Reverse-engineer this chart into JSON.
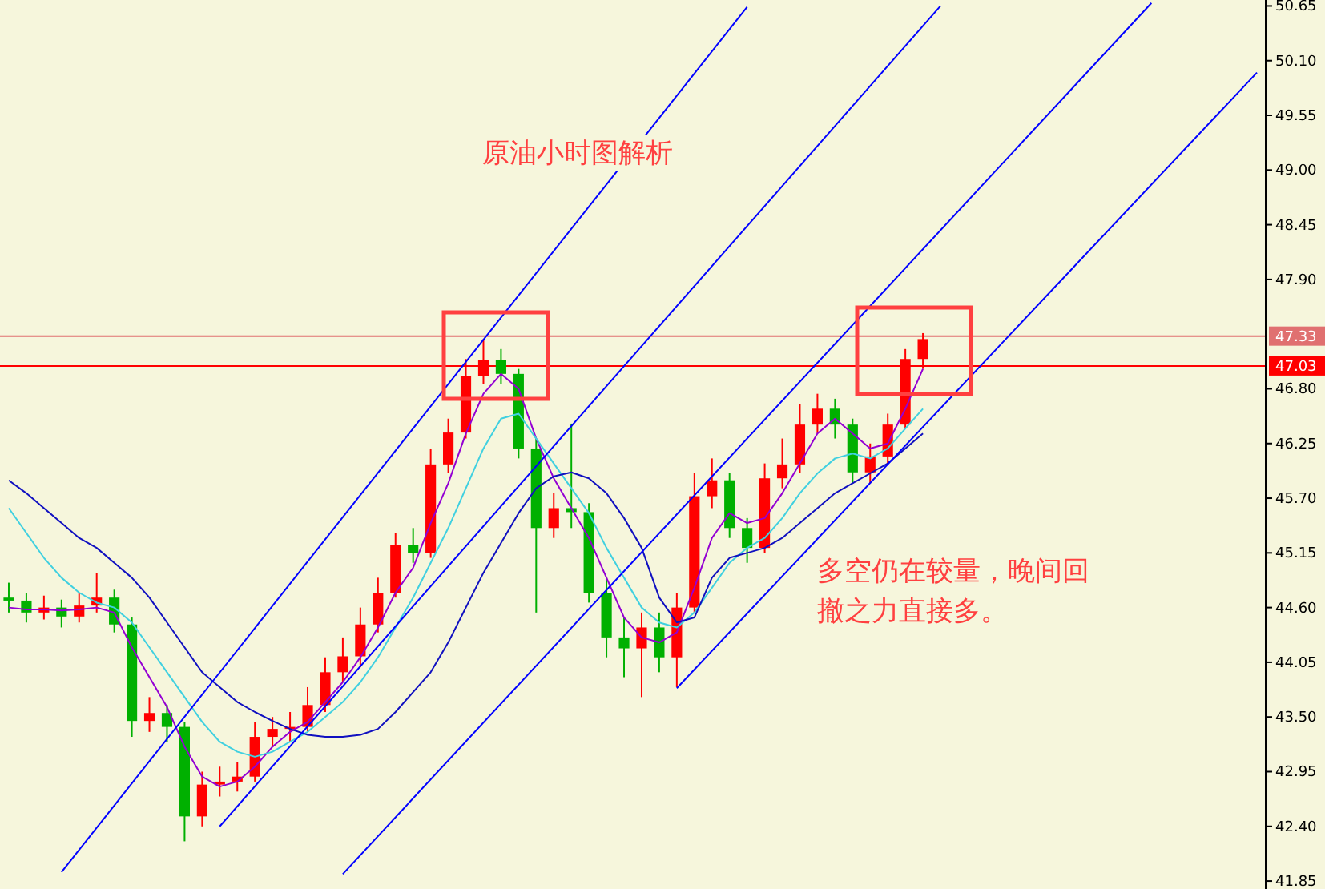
{
  "chart_data": {
    "type": "candlestick",
    "title": "原油小时图解析",
    "annotations": [
      "多空仍在较量，晚间回撤之力直接多。"
    ],
    "categories": [
      null,
      null,
      null,
      null,
      null,
      null,
      null,
      null,
      null,
      null,
      null,
      null,
      null,
      null,
      null,
      null,
      null,
      null,
      null,
      null,
      null,
      null,
      null,
      null,
      null,
      null,
      null,
      null,
      null,
      null,
      null,
      null,
      null,
      null,
      null,
      null,
      null,
      null,
      null,
      null,
      null,
      null,
      null,
      null,
      null,
      null,
      null,
      null,
      null,
      null,
      null,
      null,
      null,
      null,
      null,
      null,
      null,
      null,
      null,
      null,
      null,
      null,
      null,
      null,
      null,
      null,
      null,
      null,
      null,
      null,
      null,
      null
    ],
    "ohlc": [
      [
        44.7,
        44.85,
        44.55,
        44.67
      ],
      [
        44.67,
        44.75,
        44.45,
        44.55
      ],
      [
        44.55,
        44.72,
        44.48,
        44.6
      ],
      [
        44.6,
        44.68,
        44.4,
        44.51
      ],
      [
        44.51,
        44.75,
        44.45,
        44.62
      ],
      [
        44.62,
        44.95,
        44.55,
        44.7
      ],
      [
        44.7,
        44.78,
        44.35,
        44.43
      ],
      [
        44.43,
        44.5,
        43.3,
        43.46
      ],
      [
        43.46,
        43.7,
        43.35,
        43.54
      ],
      [
        43.54,
        43.62,
        43.25,
        43.4
      ],
      [
        43.4,
        43.45,
        42.25,
        42.5
      ],
      [
        42.5,
        42.95,
        42.4,
        42.82
      ],
      [
        42.82,
        43.0,
        42.7,
        42.85
      ],
      [
        42.85,
        43.05,
        42.75,
        42.9
      ],
      [
        42.9,
        43.45,
        42.85,
        43.3
      ],
      [
        43.3,
        43.5,
        43.2,
        43.38
      ],
      [
        43.38,
        43.55,
        43.25,
        43.4
      ],
      [
        43.4,
        43.8,
        43.35,
        43.62
      ],
      [
        43.62,
        44.1,
        43.55,
        43.95
      ],
      [
        43.95,
        44.3,
        43.85,
        44.11
      ],
      [
        44.11,
        44.6,
        44.0,
        44.43
      ],
      [
        44.43,
        44.9,
        44.35,
        44.75
      ],
      [
        44.75,
        45.35,
        44.7,
        45.23
      ],
      [
        45.23,
        45.4,
        45.05,
        45.15
      ],
      [
        45.15,
        46.2,
        45.1,
        46.04
      ],
      [
        46.04,
        46.5,
        45.95,
        46.36
      ],
      [
        46.36,
        47.1,
        46.3,
        46.93
      ],
      [
        46.93,
        47.3,
        46.85,
        47.09
      ],
      [
        47.09,
        47.2,
        46.85,
        46.95
      ],
      [
        46.95,
        47.0,
        46.1,
        46.2
      ],
      [
        46.2,
        46.3,
        44.55,
        45.4
      ],
      [
        45.4,
        45.75,
        45.3,
        45.6
      ],
      [
        45.6,
        46.45,
        45.4,
        45.56
      ],
      [
        45.56,
        45.65,
        44.65,
        44.75
      ],
      [
        44.75,
        44.9,
        44.1,
        44.3
      ],
      [
        44.3,
        44.5,
        43.9,
        44.19
      ],
      [
        44.19,
        44.55,
        43.7,
        44.4
      ],
      [
        44.4,
        44.55,
        43.95,
        44.1
      ],
      [
        44.1,
        44.75,
        43.8,
        44.6
      ],
      [
        44.6,
        45.95,
        44.55,
        45.72
      ],
      [
        45.72,
        46.1,
        45.6,
        45.88
      ],
      [
        45.88,
        45.95,
        45.3,
        45.4
      ],
      [
        45.4,
        45.5,
        45.05,
        45.2
      ],
      [
        45.2,
        46.05,
        45.15,
        45.9
      ],
      [
        45.9,
        46.3,
        45.8,
        46.04
      ],
      [
        46.04,
        46.65,
        45.95,
        46.44
      ],
      [
        46.44,
        46.75,
        46.35,
        46.6
      ],
      [
        46.6,
        46.7,
        46.3,
        46.44
      ],
      [
        46.44,
        46.5,
        45.85,
        45.96
      ],
      [
        45.96,
        46.25,
        45.85,
        46.12
      ],
      [
        46.12,
        46.55,
        46.05,
        46.44
      ],
      [
        46.44,
        47.2,
        46.4,
        47.1
      ],
      [
        47.1,
        47.36,
        47.0,
        47.3
      ],
      null,
      null,
      null,
      null,
      null,
      null,
      null,
      null,
      null,
      null,
      null,
      null,
      null,
      null,
      null,
      null,
      null,
      null,
      null
    ],
    "series": [
      {
        "type": "line",
        "color": "#9400d3",
        "values": [
          44.6,
          44.58,
          44.58,
          44.57,
          44.58,
          44.6,
          44.55,
          44.2,
          43.9,
          43.6,
          43.2,
          42.9,
          42.8,
          42.85,
          43.0,
          43.2,
          43.35,
          43.45,
          43.65,
          43.85,
          44.1,
          44.4,
          44.75,
          45.0,
          45.45,
          45.85,
          46.35,
          46.75,
          46.95,
          46.8,
          46.3,
          45.9,
          45.6,
          45.3,
          44.9,
          44.5,
          44.3,
          44.25,
          44.35,
          44.8,
          45.3,
          45.55,
          45.45,
          45.5,
          45.75,
          46.05,
          46.35,
          46.5,
          46.35,
          46.2,
          46.25,
          46.6,
          47.0,
          null,
          null,
          null,
          null,
          null,
          null,
          null,
          null,
          null,
          null,
          null,
          null,
          null,
          null,
          null,
          null,
          null,
          null,
          null
        ]
      },
      {
        "type": "line",
        "color": "#40d0e0",
        "values": [
          45.6,
          45.35,
          45.1,
          44.9,
          44.75,
          44.65,
          44.6,
          44.45,
          44.2,
          43.95,
          43.7,
          43.45,
          43.25,
          43.15,
          43.1,
          43.15,
          43.25,
          43.35,
          43.5,
          43.65,
          43.85,
          44.1,
          44.4,
          44.7,
          45.05,
          45.4,
          45.8,
          46.2,
          46.5,
          46.55,
          46.3,
          46.05,
          45.8,
          45.55,
          45.2,
          44.9,
          44.6,
          44.45,
          44.4,
          44.55,
          44.8,
          45.05,
          45.2,
          45.3,
          45.5,
          45.75,
          45.95,
          46.1,
          46.15,
          46.1,
          46.2,
          46.4,
          46.6,
          null,
          null,
          null,
          null,
          null,
          null,
          null,
          null,
          null,
          null,
          null,
          null,
          null,
          null,
          null,
          null,
          null,
          null,
          null
        ]
      },
      {
        "type": "line",
        "color": "#1010c0",
        "values": [
          45.88,
          45.75,
          45.6,
          45.45,
          45.3,
          45.2,
          45.05,
          44.9,
          44.7,
          44.45,
          44.2,
          43.95,
          43.8,
          43.65,
          43.55,
          43.46,
          43.38,
          43.32,
          43.3,
          43.3,
          43.32,
          43.38,
          43.55,
          43.75,
          43.95,
          44.25,
          44.6,
          44.95,
          45.25,
          45.55,
          45.8,
          45.92,
          45.96,
          45.9,
          45.75,
          45.5,
          45.2,
          44.7,
          44.45,
          44.5,
          44.9,
          45.1,
          45.15,
          45.2,
          45.3,
          45.45,
          45.6,
          45.75,
          45.85,
          45.95,
          46.05,
          46.2,
          46.35,
          null,
          null,
          null,
          null,
          null,
          null,
          null,
          null,
          null,
          null,
          null,
          null,
          null,
          null,
          null,
          null,
          null,
          null,
          null
        ]
      },
      {
        "type": "line",
        "color": "#0000ff",
        "values": [
          null,
          null,
          null,
          41.94,
          null,
          null,
          null,
          null,
          null,
          null,
          null,
          null,
          null,
          null,
          null,
          null,
          null,
          null,
          null,
          null,
          null,
          null,
          null,
          null,
          null,
          null,
          null,
          null,
          null,
          null,
          null,
          null,
          null,
          null,
          null,
          null,
          null,
          null,
          null,
          null,
          null,
          null,
          50.64,
          null,
          null,
          null,
          null,
          null,
          null,
          null,
          null,
          null,
          null,
          null,
          null,
          null,
          null,
          null,
          null,
          null,
          null,
          null,
          null,
          null,
          null,
          null,
          null,
          null,
          null,
          null,
          null,
          null
        ]
      },
      {
        "type": "line",
        "color": "#0000ff",
        "values": [
          null,
          null,
          null,
          null,
          null,
          null,
          null,
          null,
          null,
          null,
          null,
          null,
          42.4,
          null,
          null,
          null,
          null,
          null,
          null,
          null,
          null,
          null,
          null,
          null,
          null,
          null,
          null,
          null,
          null,
          null,
          null,
          null,
          null,
          null,
          null,
          null,
          null,
          null,
          null,
          null,
          null,
          null,
          null,
          null,
          null,
          null,
          null,
          null,
          null,
          null,
          null,
          null,
          null,
          50.65,
          null,
          null,
          null,
          null,
          null,
          null,
          null,
          null,
          null,
          null,
          null,
          null,
          null,
          null,
          null,
          null,
          null,
          null
        ]
      },
      {
        "type": "line",
        "color": "#0000ff",
        "values": [
          null,
          null,
          null,
          null,
          null,
          null,
          null,
          null,
          null,
          null,
          null,
          null,
          null,
          null,
          null,
          null,
          null,
          null,
          null,
          41.92,
          null,
          null,
          null,
          null,
          null,
          null,
          null,
          null,
          null,
          null,
          null,
          null,
          null,
          null,
          null,
          null,
          null,
          null,
          null,
          null,
          null,
          null,
          null,
          null,
          null,
          null,
          null,
          null,
          null,
          null,
          null,
          null,
          null,
          null,
          null,
          null,
          null,
          null,
          null,
          null,
          null,
          null,
          null,
          null,
          null,
          50.68,
          null,
          null,
          null,
          null,
          null,
          null
        ]
      },
      {
        "type": "line",
        "color": "#0000ff",
        "values": [
          null,
          null,
          null,
          null,
          null,
          null,
          null,
          null,
          null,
          null,
          null,
          null,
          null,
          null,
          null,
          null,
          null,
          null,
          null,
          null,
          null,
          null,
          null,
          null,
          null,
          null,
          null,
          null,
          null,
          null,
          null,
          null,
          null,
          null,
          null,
          null,
          null,
          null,
          43.79,
          null,
          null,
          null,
          null,
          null,
          null,
          null,
          null,
          null,
          null,
          null,
          null,
          null,
          null,
          null,
          null,
          null,
          null,
          null,
          null,
          null,
          null,
          null,
          null,
          null,
          null,
          null,
          null,
          null,
          null,
          null,
          null,
          49.98
        ]
      }
    ],
    "ylim": [
      41.77,
      50.71
    ],
    "yticks": [
      41.85,
      {
        "value": 42.4,
        "label": "42.40"
      },
      42.95,
      {
        "value": 43.5,
        "label": "43.50"
      },
      44.05,
      {
        "value": 44.6,
        "label": "44.60"
      },
      45.15,
      {
        "value": 45.7,
        "label": "45.70"
      },
      46.25,
      {
        "value": 46.8,
        "label": "46.80"
      },
      {
        "value": 47.9,
        "label": "47.90"
      },
      48.45,
      {
        "value": 49.0,
        "label": "49.00"
      },
      49.55,
      {
        "value": 50.1,
        "label": "50.10"
      },
      50.65
    ],
    "ref_lines": [
      {
        "axis": "y",
        "value": 47.33,
        "label": "47.33",
        "color": "#e07070"
      },
      {
        "axis": "y",
        "value": 47.03,
        "label": "47.03",
        "color": "#ff0000"
      }
    ],
    "tick_labels": "y"
  }
}
